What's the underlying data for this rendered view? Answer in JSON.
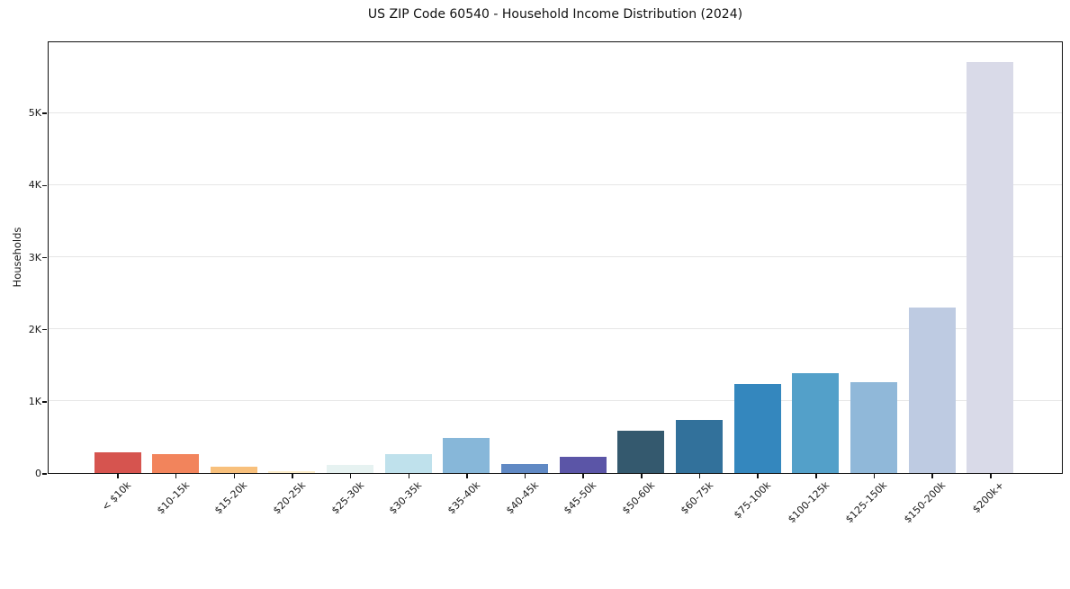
{
  "chart_data": {
    "type": "bar",
    "title": "US ZIP Code 60540 - Household Income Distribution (2024)",
    "xlabel": "",
    "ylabel": "Households",
    "ylim": [
      0,
      6000
    ],
    "grid": "horizontal-light-gray-behind-bars",
    "legend": "none",
    "categories": [
      "< $10k",
      "$10-15k",
      "$15-20k",
      "$20-25k",
      "$25-30k",
      "$30-35k",
      "$35-40k",
      "$40-45k",
      "$45-50k",
      "$50-60k",
      "$60-75k",
      "$75-100k",
      "$100-125k",
      "$125-150k",
      "$150-200k",
      "$200k+"
    ],
    "values": [
      290,
      260,
      85,
      30,
      110,
      260,
      490,
      120,
      225,
      590,
      730,
      1240,
      1390,
      1265,
      2290,
      5700
    ],
    "bar_colors": [
      "#d6544f",
      "#f2845c",
      "#f8c07c",
      "#fdedc9",
      "#e6f2f1",
      "#bfe1ec",
      "#87b7d9",
      "#6089c4",
      "#5b55a7",
      "#34596e",
      "#32719b",
      "#3487be",
      "#53a0c9",
      "#90b8d9",
      "#becbe2",
      "#d9dae8"
    ],
    "yticks": [
      {
        "value": 0,
        "label": "0"
      },
      {
        "value": 1000,
        "label": "1K"
      },
      {
        "value": 2000,
        "label": "2K"
      },
      {
        "value": 3000,
        "label": "3K"
      },
      {
        "value": 4000,
        "label": "4K"
      },
      {
        "value": 5000,
        "label": "5K"
      }
    ],
    "axis_color": "#111111",
    "gridline_color": "#e6e6e6",
    "text_color": "#1a1a1a",
    "background_color": "#ffffff"
  }
}
